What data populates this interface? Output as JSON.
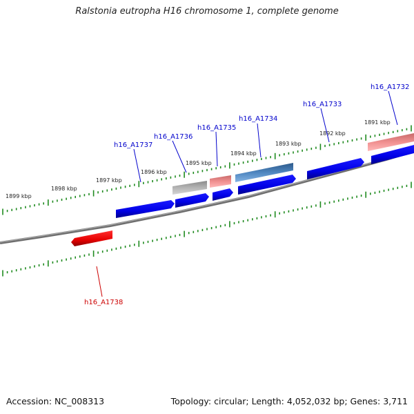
{
  "title": "Ralstonia eutropha H16 chromosome 1, complete genome",
  "footer": {
    "accession": "Accession: NC_008313",
    "topology": "Topology: circular; Length: 4,052,032 bp; Genes: 3,711"
  },
  "colors": {
    "backbone": "#808080",
    "tick": "#1e8a1e",
    "label_forward": "#0000cc",
    "label_reverse": "#cc0000",
    "gene_blue": "#0000ee",
    "gene_red": "#ee0000"
  },
  "kbp_labels": [
    "1899 kbp",
    "1898 kbp",
    "1897 kbp",
    "1896 kbp",
    "1895 kbp",
    "1894 kbp",
    "1893 kbp",
    "1892 kbp",
    "1891 kbp"
  ],
  "genes": [
    {
      "locus": "h16_A1737",
      "strand": "forward"
    },
    {
      "locus": "h16_A1736",
      "strand": "forward"
    },
    {
      "locus": "h16_A1735",
      "strand": "forward"
    },
    {
      "locus": "h16_A1734",
      "strand": "forward"
    },
    {
      "locus": "h16_A1733",
      "strand": "forward"
    },
    {
      "locus": "h16_A1732",
      "strand": "forward"
    },
    {
      "locus": "h16_A1738",
      "strand": "reverse"
    }
  ]
}
